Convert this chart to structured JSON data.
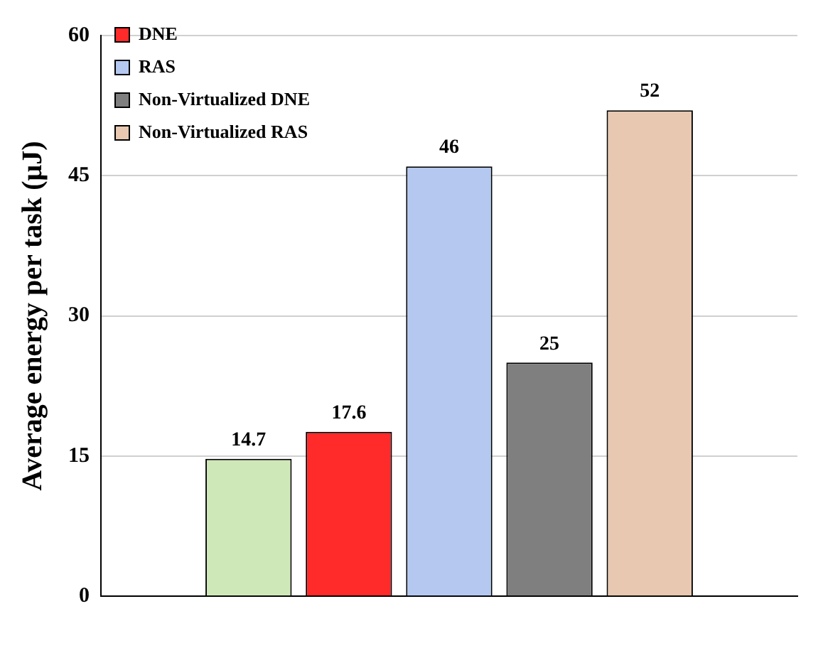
{
  "chart_data": {
    "type": "bar",
    "ylabel": "Average energy per task (μJ)",
    "categories": [
      null
    ],
    "series": [
      {
        "color": "#cfe8b8",
        "values": [
          14.7
        ]
      },
      {
        "name": "DNE",
        "color": "#ff2a2a",
        "values": [
          17.6
        ]
      },
      {
        "name": "RAS",
        "color": "#b4c8f0",
        "values": [
          46
        ]
      },
      {
        "name": "Non-Virtualized DNE",
        "color": "#7f7f7f",
        "values": [
          25
        ]
      },
      {
        "name": "Non-Virtualized RAS",
        "color": "#e8c8b0",
        "values": [
          52
        ]
      }
    ],
    "ylim": [
      0,
      60
    ],
    "yticks": [
      0,
      15,
      30,
      45,
      60
    ],
    "grid": "y",
    "legend": "top left",
    "data_labels": true
  }
}
